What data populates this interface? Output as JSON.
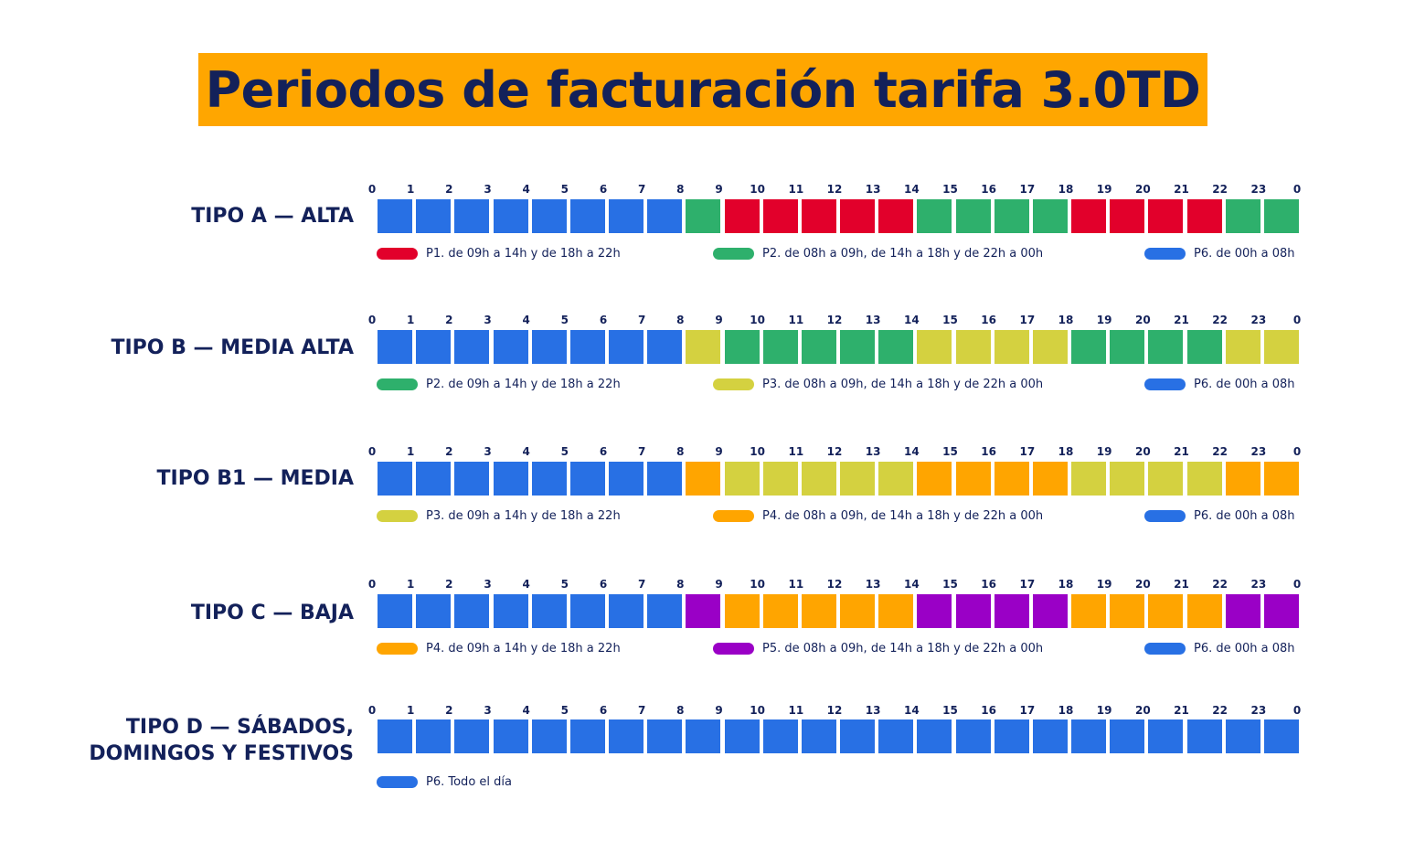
{
  "title": "Periodos de facturación tarifa 3.0TD",
  "colors": {
    "P1": "#e2002b",
    "P2": "#2eb06c",
    "P3": "#d4d140",
    "P4": "#ffa500",
    "P5": "#9a00c6",
    "P6": "#2870e4",
    "title_bg": "#ffa600",
    "text": "#13215a"
  },
  "hour_labels": [
    "0",
    "1",
    "2",
    "3",
    "4",
    "5",
    "6",
    "7",
    "8",
    "9",
    "10",
    "11",
    "12",
    "13",
    "14",
    "15",
    "16",
    "17",
    "18",
    "19",
    "20",
    "21",
    "22",
    "23",
    "0"
  ],
  "rows": [
    {
      "label": "TIPO A — ALTA",
      "periods": [
        "P6",
        "P6",
        "P6",
        "P6",
        "P6",
        "P6",
        "P6",
        "P6",
        "P2",
        "P1",
        "P1",
        "P1",
        "P1",
        "P1",
        "P2",
        "P2",
        "P2",
        "P2",
        "P1",
        "P1",
        "P1",
        "P1",
        "P2",
        "P2"
      ],
      "legend": [
        {
          "period": "P1",
          "text": "P1. de 09h a 14h y de 18h a 22h"
        },
        {
          "period": "P2",
          "text": "P2. de 08h a 09h, de 14h a 18h y de 22h a 00h"
        },
        {
          "period": "P6",
          "text": "P6. de 00h a 08h"
        }
      ]
    },
    {
      "label": "TIPO B — MEDIA ALTA",
      "periods": [
        "P6",
        "P6",
        "P6",
        "P6",
        "P6",
        "P6",
        "P6",
        "P6",
        "P3",
        "P2",
        "P2",
        "P2",
        "P2",
        "P2",
        "P3",
        "P3",
        "P3",
        "P3",
        "P2",
        "P2",
        "P2",
        "P2",
        "P3",
        "P3"
      ],
      "legend": [
        {
          "period": "P2",
          "text": "P2. de 09h a 14h y de 18h a 22h"
        },
        {
          "period": "P3",
          "text": "P3. de 08h a 09h, de 14h a 18h y de 22h a 00h"
        },
        {
          "period": "P6",
          "text": "P6. de 00h a 08h"
        }
      ]
    },
    {
      "label": "TIPO B1 — MEDIA",
      "periods": [
        "P6",
        "P6",
        "P6",
        "P6",
        "P6",
        "P6",
        "P6",
        "P6",
        "P4",
        "P3",
        "P3",
        "P3",
        "P3",
        "P3",
        "P4",
        "P4",
        "P4",
        "P4",
        "P3",
        "P3",
        "P3",
        "P3",
        "P4",
        "P4"
      ],
      "legend": [
        {
          "period": "P3",
          "text": "P3. de 09h a 14h y de 18h a 22h"
        },
        {
          "period": "P4",
          "text": "P4. de 08h a 09h, de 14h a 18h y de 22h a 00h"
        },
        {
          "period": "P6",
          "text": "P6. de 00h a 08h"
        }
      ]
    },
    {
      "label": "TIPO C — BAJA",
      "periods": [
        "P6",
        "P6",
        "P6",
        "P6",
        "P6",
        "P6",
        "P6",
        "P6",
        "P5",
        "P4",
        "P4",
        "P4",
        "P4",
        "P4",
        "P5",
        "P5",
        "P5",
        "P5",
        "P4",
        "P4",
        "P4",
        "P4",
        "P5",
        "P5"
      ],
      "legend": [
        {
          "period": "P4",
          "text": "P4. de 09h a 14h y de 18h a 22h"
        },
        {
          "period": "P5",
          "text": "P5. de 08h a 09h, de 14h a 18h y de 22h a 00h"
        },
        {
          "period": "P6",
          "text": "P6. de 00h a 08h"
        }
      ]
    },
    {
      "label": "TIPO D — SÁBADOS,\nDOMINGOS Y FESTIVOS",
      "periods": [
        "P6",
        "P6",
        "P6",
        "P6",
        "P6",
        "P6",
        "P6",
        "P6",
        "P6",
        "P6",
        "P6",
        "P6",
        "P6",
        "P6",
        "P6",
        "P6",
        "P6",
        "P6",
        "P6",
        "P6",
        "P6",
        "P6",
        "P6",
        "P6"
      ],
      "legend": [
        {
          "period": "P6",
          "text": "P6. Todo el día"
        }
      ]
    }
  ]
}
